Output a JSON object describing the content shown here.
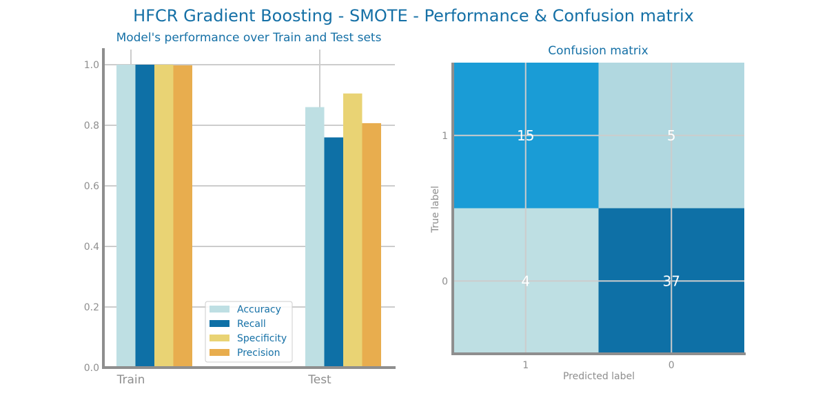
{
  "title": "HFCR Gradient Boosting - SMOTE - Performance & Confusion matrix",
  "chart_data": [
    {
      "type": "bar",
      "title": "Model's performance over Train and Test sets",
      "categories": [
        "Train",
        "Test"
      ],
      "series": [
        {
          "name": "Accuracy",
          "values": [
            1.0,
            0.86
          ],
          "color": "#bedfe3"
        },
        {
          "name": "Recall",
          "values": [
            1.0,
            0.76
          ],
          "color": "#0e70a6"
        },
        {
          "name": "Specificity",
          "values": [
            1.0,
            0.905
          ],
          "color": "#e9d374"
        },
        {
          "name": "Precision",
          "values": [
            0.998,
            0.807
          ],
          "color": "#e8ad4e"
        }
      ],
      "ylim": [
        0,
        1.0
      ],
      "yticks": [
        "0.0",
        "0.2",
        "0.4",
        "0.6",
        "0.8",
        "1.0"
      ],
      "grid": true,
      "legend": "lower-center"
    },
    {
      "type": "heatmap",
      "title": "Confusion matrix",
      "xlabel": "Predicted label",
      "ylabel": "True label",
      "x_categories": [
        "1",
        "0"
      ],
      "y_categories": [
        "1",
        "0"
      ],
      "values": [
        [
          15,
          5
        ],
        [
          4,
          37
        ]
      ],
      "colors": [
        [
          "#1a9cd6",
          "#b1d8e0"
        ],
        [
          "#bedfe3",
          "#0e70a6"
        ]
      ]
    }
  ]
}
